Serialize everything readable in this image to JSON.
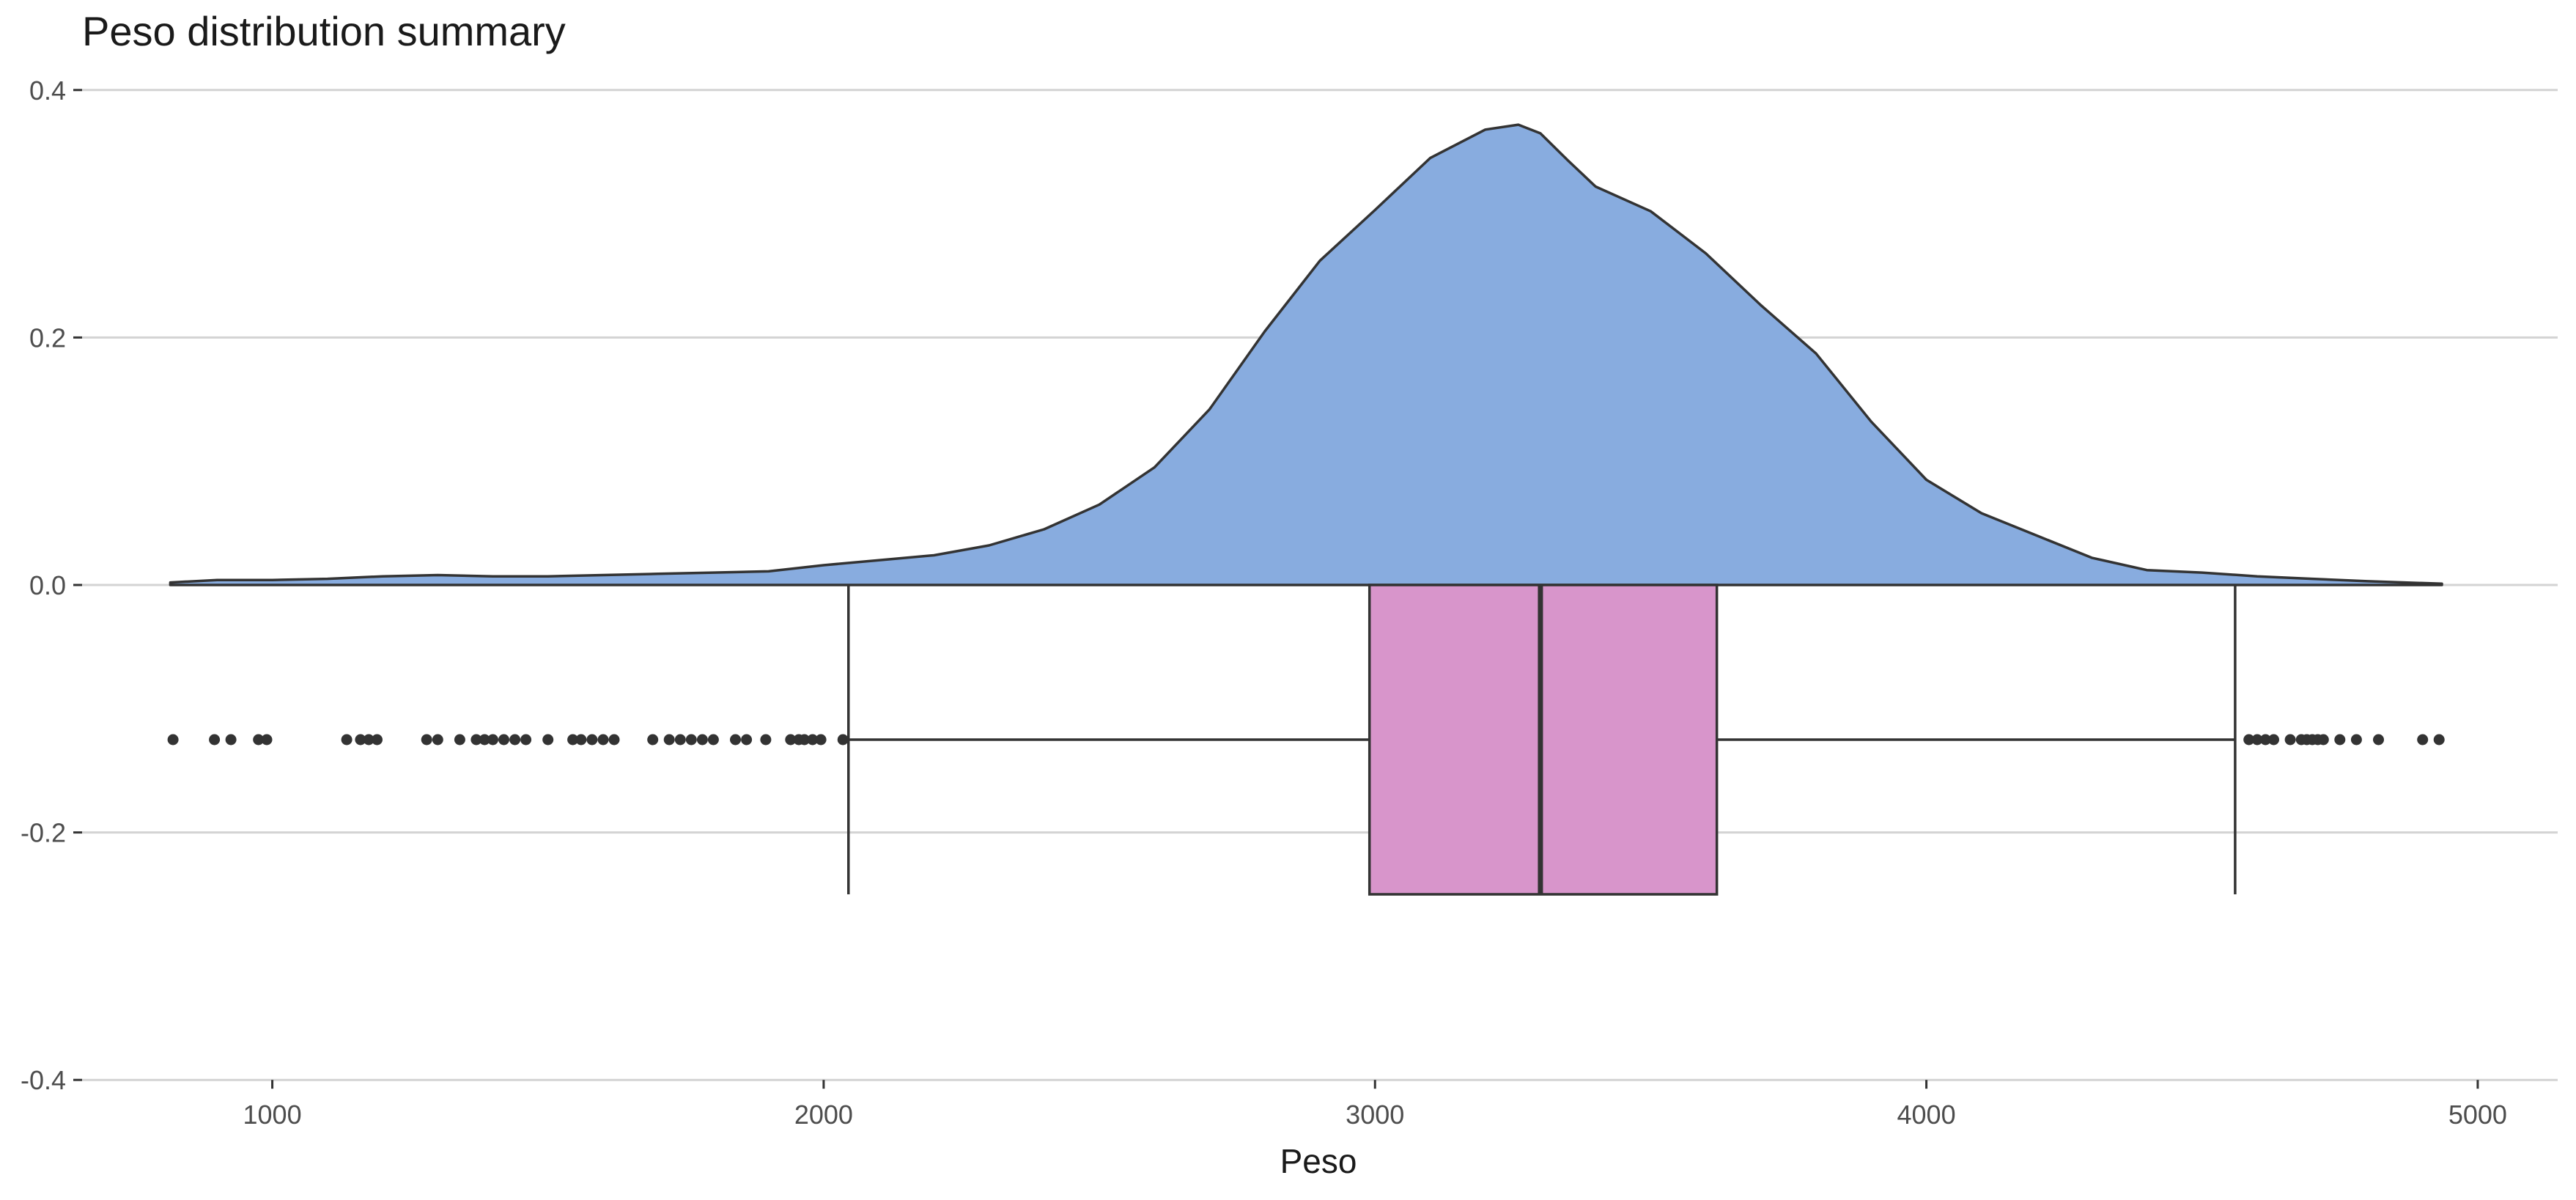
{
  "chart_data": {
    "type": "density_boxplot",
    "title": "Peso distribution summary",
    "xlabel": "Peso",
    "ylabel": "",
    "xlim": [
      655,
      5145
    ],
    "ylim": [
      -0.4,
      0.4
    ],
    "x_ticks": [
      1000,
      2000,
      3000,
      4000,
      5000
    ],
    "y_ticks": [
      0.4,
      0.2,
      0.0,
      -0.2,
      -0.4
    ],
    "y_tick_labels": [
      "0.4",
      "0.2",
      "0.0",
      "-0.2",
      "-0.4"
    ],
    "grid": "horizontal",
    "colors": {
      "density_fill": "#88ACDF",
      "box_fill": "#D895CB",
      "line": "#333333",
      "grid": "#D3D3D3"
    },
    "density": {
      "x": [
        815,
        900,
        1000,
        1100,
        1200,
        1300,
        1400,
        1500,
        1600,
        1700,
        1800,
        1900,
        2000,
        2100,
        2200,
        2300,
        2400,
        2500,
        2600,
        2700,
        2800,
        2900,
        3000,
        3100,
        3200,
        3260,
        3300,
        3350,
        3400,
        3500,
        3600,
        3700,
        3800,
        3900,
        4000,
        4100,
        4200,
        4300,
        4400,
        4500,
        4600,
        4700,
        4800,
        4935
      ],
      "y": [
        0.002,
        0.004,
        0.004,
        0.005,
        0.007,
        0.008,
        0.007,
        0.007,
        0.008,
        0.009,
        0.01,
        0.011,
        0.016,
        0.02,
        0.024,
        0.032,
        0.045,
        0.065,
        0.095,
        0.142,
        0.205,
        0.262,
        0.303,
        0.345,
        0.368,
        0.372,
        0.365,
        0.343,
        0.322,
        0.302,
        0.268,
        0.226,
        0.187,
        0.132,
        0.085,
        0.058,
        0.04,
        0.022,
        0.012,
        0.01,
        0.007,
        0.005,
        0.003,
        0.001
      ]
    },
    "boxplot": {
      "whisker_low": 2045,
      "q1": 2990,
      "median": 3300,
      "q3": 3620,
      "whisker_high": 4560,
      "center": -0.125,
      "bottom": -0.25,
      "top": 0.0,
      "outliers": [
        820,
        895,
        925,
        975,
        990,
        1135,
        1160,
        1175,
        1190,
        1280,
        1300,
        1340,
        1370,
        1385,
        1400,
        1420,
        1440,
        1460,
        1500,
        1545,
        1560,
        1580,
        1600,
        1620,
        1690,
        1720,
        1740,
        1760,
        1780,
        1800,
        1840,
        1860,
        1895,
        1940,
        1955,
        1965,
        1980,
        1995,
        2035,
        4585,
        4600,
        4615,
        4630,
        4660,
        4680,
        4690,
        4700,
        4710,
        4720,
        4750,
        4780,
        4820,
        4900,
        4930
      ]
    }
  }
}
